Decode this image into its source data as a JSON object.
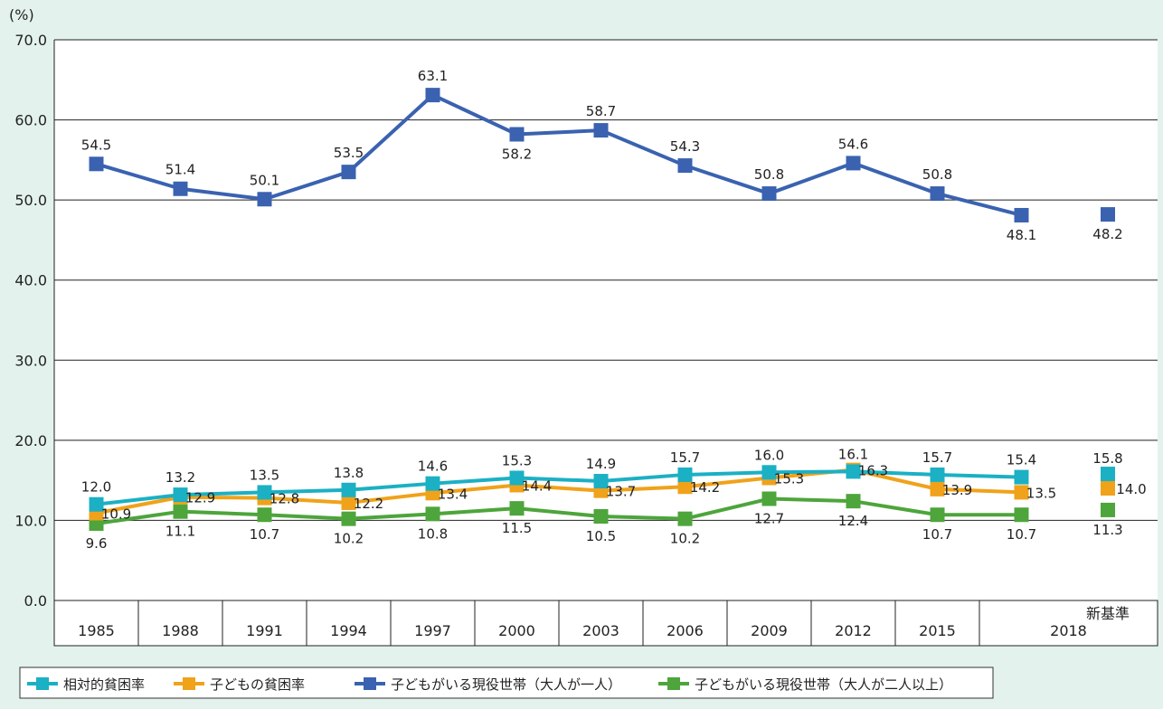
{
  "chart_data": {
    "type": "line",
    "unit_label": "(%)",
    "y_ticks": [
      "0.0",
      "10.0",
      "20.0",
      "30.0",
      "40.0",
      "50.0",
      "60.0",
      "70.0"
    ],
    "ylim": [
      0,
      70
    ],
    "categories": [
      "1985",
      "1988",
      "1991",
      "1994",
      "1997",
      "2000",
      "2003",
      "2006",
      "2009",
      "2012",
      "2015",
      "2018"
    ],
    "new_standard_label": "新基準",
    "series": [
      {
        "name": "相対的貧困率",
        "color": "#1bb0c4",
        "values": [
          12.0,
          13.2,
          13.5,
          13.8,
          14.6,
          15.3,
          14.9,
          15.7,
          16.0,
          16.1,
          15.7,
          15.4
        ],
        "new_standard_value": 15.8,
        "labels": [
          "12.0",
          "13.2",
          "13.5",
          "13.8",
          "14.6",
          "15.3",
          "14.9",
          "15.7",
          "16.0",
          "16.1",
          "15.7",
          "15.4"
        ],
        "new_standard_label_text": "15.8"
      },
      {
        "name": "子どもの貧困率",
        "color": "#f0a21a",
        "values": [
          10.9,
          12.9,
          12.8,
          12.2,
          13.4,
          14.4,
          13.7,
          14.2,
          15.3,
          16.3,
          13.9,
          13.5
        ],
        "new_standard_value": 14.0,
        "labels": [
          "10.9",
          "12.9",
          "12.8",
          "12.2",
          "13.4",
          "14.4",
          "13.7",
          "14.2",
          "15.3",
          "16.3",
          "13.9",
          "13.5"
        ],
        "new_standard_label_text": "14.0"
      },
      {
        "name": "子どもがいる現役世帯（大人が一人）",
        "color": "#3a62b0",
        "values": [
          54.5,
          51.4,
          50.1,
          53.5,
          63.1,
          58.2,
          58.7,
          54.3,
          50.8,
          54.6,
          50.8,
          48.1
        ],
        "new_standard_value": 48.2,
        "labels": [
          "54.5",
          "51.4",
          "50.1",
          "53.5",
          "63.1",
          "58.2",
          "58.7",
          "54.3",
          "50.8",
          "54.6",
          "50.8",
          "48.1"
        ],
        "new_standard_label_text": "48.2"
      },
      {
        "name": "子どもがいる現役世帯（大人が二人以上）",
        "color": "#4da53b",
        "values": [
          9.6,
          11.1,
          10.7,
          10.2,
          10.8,
          11.5,
          10.5,
          10.2,
          12.7,
          12.4,
          10.7,
          10.7
        ],
        "new_standard_value": 11.3,
        "labels": [
          "9.6",
          "11.1",
          "10.7",
          "10.2",
          "10.8",
          "11.5",
          "10.5",
          "10.2",
          "12.7",
          "12.4",
          "10.7",
          "10.7"
        ],
        "new_standard_label_text": "11.3"
      }
    ]
  }
}
